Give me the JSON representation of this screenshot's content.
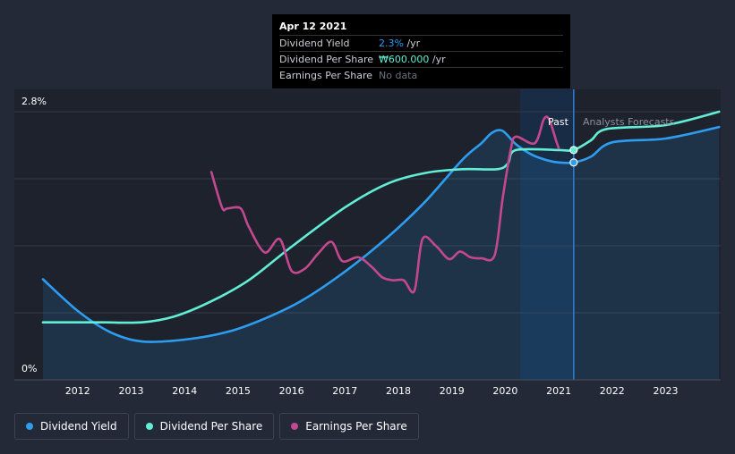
{
  "tooltip": {
    "date": "Apr 12 2021",
    "rows": [
      {
        "label": "Dividend Yield",
        "value": "2.3%",
        "unit": " /yr"
      },
      {
        "label": "Dividend Per Share",
        "value": "₩600.000",
        "unit": " /yr"
      },
      {
        "label": "Earnings Per Share",
        "value": "No data",
        "unit": ""
      }
    ]
  },
  "legend": {
    "items": [
      {
        "label": "Dividend Yield",
        "color": "#2d9df0"
      },
      {
        "label": "Dividend Per Share",
        "color": "#63edd5"
      },
      {
        "label": "Earnings Per Share",
        "color": "#c4488f"
      }
    ]
  },
  "chart_data": {
    "type": "line",
    "title": "",
    "xlabel": "",
    "ylabel": "",
    "y_top_label": "2.8%",
    "y_bottom_label": "0%",
    "ylim": [
      0,
      2.8
    ],
    "xlim": [
      2011.35,
      2024.0
    ],
    "x_ticks": [
      "2012",
      "2013",
      "2014",
      "2015",
      "2016",
      "2017",
      "2018",
      "2019",
      "2020",
      "2021",
      "2022",
      "2023"
    ],
    "past_label": "Past",
    "forecast_label": "Analysts Forecasts",
    "cursor_x": 2021.28,
    "highlight_range": [
      2020.28,
      2021.28
    ],
    "series": [
      {
        "name": "Dividend Yield",
        "color": "#2d9df0",
        "area": true,
        "x": [
          2011.35,
          2012.0,
          2012.6,
          2013.2,
          2014.0,
          2014.8,
          2015.5,
          2016.2,
          2017.0,
          2017.8,
          2018.5,
          2019.2,
          2019.55,
          2019.75,
          2019.95,
          2020.2,
          2020.5,
          2020.8,
          2021.0,
          2021.28,
          2021.6,
          2022.0,
          2023.0,
          2024.0
        ],
        "y": [
          1.05,
          0.72,
          0.5,
          0.4,
          0.42,
          0.5,
          0.64,
          0.83,
          1.13,
          1.49,
          1.86,
          2.3,
          2.47,
          2.58,
          2.6,
          2.46,
          2.35,
          2.29,
          2.27,
          2.27,
          2.33,
          2.48,
          2.52,
          2.64
        ]
      },
      {
        "name": "Dividend Per Share",
        "color": "#63edd5",
        "area": false,
        "x": [
          2011.35,
          2012.0,
          2012.5,
          2013.2,
          2013.8,
          2014.5,
          2015.2,
          2016.0,
          2017.0,
          2017.8,
          2018.5,
          2019.2,
          2019.85,
          2020.05,
          2020.2,
          2021.0,
          2021.28,
          2021.6,
          2021.9,
          2023.0,
          2024.0
        ],
        "y": [
          0.6,
          0.6,
          0.6,
          0.6,
          0.66,
          0.82,
          1.04,
          1.39,
          1.8,
          2.05,
          2.16,
          2.2,
          2.2,
          2.26,
          2.4,
          2.4,
          2.4,
          2.5,
          2.62,
          2.66,
          2.8
        ]
      },
      {
        "name": "Earnings Per Share",
        "color": "#c4488f",
        "area": false,
        "x": [
          2014.5,
          2014.7,
          2014.8,
          2015.05,
          2015.2,
          2015.5,
          2015.78,
          2016.0,
          2016.25,
          2016.5,
          2016.75,
          2016.95,
          2017.25,
          2017.5,
          2017.7,
          2017.9,
          2018.1,
          2018.3,
          2018.45,
          2018.7,
          2018.95,
          2019.15,
          2019.35,
          2019.55,
          2019.8,
          2019.95,
          2020.1,
          2020.2,
          2020.55,
          2020.72,
          2020.82,
          2020.95,
          2021.0
        ],
        "y": [
          2.17,
          1.8,
          1.79,
          1.79,
          1.6,
          1.33,
          1.47,
          1.14,
          1.16,
          1.32,
          1.44,
          1.24,
          1.28,
          1.18,
          1.07,
          1.04,
          1.04,
          0.93,
          1.47,
          1.4,
          1.26,
          1.34,
          1.28,
          1.27,
          1.3,
          1.89,
          2.4,
          2.54,
          2.47,
          2.72,
          2.72,
          2.5,
          2.42
        ]
      }
    ]
  }
}
